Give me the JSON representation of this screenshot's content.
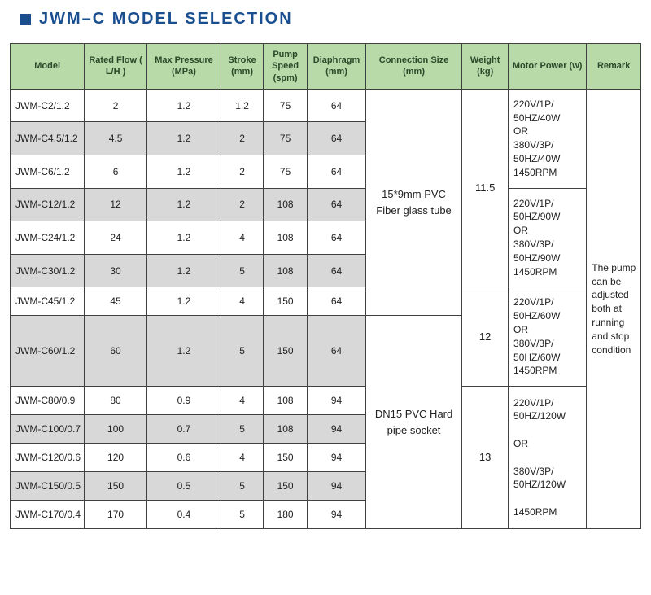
{
  "title": "JWM–C  MODEL SELECTION",
  "colors": {
    "brand": "#1a4f8f",
    "header_bg": "#b8d9a8",
    "border": "#404040",
    "shade": "#d8d8d8"
  },
  "columns": [
    "Model",
    "Rated Flow ( L/H )",
    "Max Pressure (MPa)",
    "Stroke (mm)",
    "Pump Speed (spm)",
    "Diaphragm (mm)",
    "Connection Size (mm)",
    "Weight (kg)",
    "Motor Power (w)",
    "Remark"
  ],
  "rows": [
    {
      "model": "JWM-C2/1.2",
      "flow": "2",
      "press": "1.2",
      "stroke": "1.2",
      "speed": "75",
      "diaph": "64",
      "shaded": false
    },
    {
      "model": "JWM-C4.5/1.2",
      "flow": "4.5",
      "press": "1.2",
      "stroke": "2",
      "speed": "75",
      "diaph": "64",
      "shaded": true
    },
    {
      "model": "JWM-C6/1.2",
      "flow": "6",
      "press": "1.2",
      "stroke": "2",
      "speed": "75",
      "diaph": "64",
      "shaded": false
    },
    {
      "model": "JWM-C12/1.2",
      "flow": "12",
      "press": "1.2",
      "stroke": "2",
      "speed": "108",
      "diaph": "64",
      "shaded": true
    },
    {
      "model": "JWM-C24/1.2",
      "flow": "24",
      "press": "1.2",
      "stroke": "4",
      "speed": "108",
      "diaph": "64",
      "shaded": false
    },
    {
      "model": "JWM-C30/1.2",
      "flow": "30",
      "press": "1.2",
      "stroke": "5",
      "speed": "108",
      "diaph": "64",
      "shaded": true
    },
    {
      "model": "JWM-C45/1.2",
      "flow": "45",
      "press": "1.2",
      "stroke": "4",
      "speed": "150",
      "diaph": "64",
      "shaded": false
    },
    {
      "model": "JWM-C60/1.2",
      "flow": "60",
      "press": "1.2",
      "stroke": "5",
      "speed": "150",
      "diaph": "64",
      "shaded": true
    },
    {
      "model": "JWM-C80/0.9",
      "flow": "80",
      "press": "0.9",
      "stroke": "4",
      "speed": "108",
      "diaph": "94",
      "shaded": false
    },
    {
      "model": "JWM-C100/0.7",
      "flow": "100",
      "press": "0.7",
      "stroke": "5",
      "speed": "108",
      "diaph": "94",
      "shaded": true
    },
    {
      "model": "JWM-C120/0.6",
      "flow": "120",
      "press": "0.6",
      "stroke": "4",
      "speed": "150",
      "diaph": "94",
      "shaded": false
    },
    {
      "model": "JWM-C150/0.5",
      "flow": "150",
      "press": "0.5",
      "stroke": "5",
      "speed": "150",
      "diaph": "94",
      "shaded": true
    },
    {
      "model": "JWM-C170/0.4",
      "flow": "170",
      "press": "0.4",
      "stroke": "5",
      "speed": "180",
      "diaph": "94",
      "shaded": false
    }
  ],
  "connection": {
    "group1": "15*9mm PVC Fiber glass tube",
    "group2": "DN15 PVC Hard pipe socket"
  },
  "weight": {
    "w1": "11.5",
    "w2": "12",
    "w3": "13"
  },
  "motor": {
    "m1": "220V/1P/\n50HZ/40W\nOR\n380V/3P/\n50HZ/40W\n1450RPM",
    "m2": "220V/1P/\n50HZ/90W\nOR\n380V/3P/\n50HZ/90W\n1450RPM",
    "m3": "220V/1P/\n50HZ/60W\nOR\n380V/3P/\n50HZ/60W\n1450RPM",
    "m4": "220V/1P/\n50HZ/120W\n\nOR\n\n380V/3P/\n50HZ/120W\n\n1450RPM"
  },
  "remark": "The pump can be adjusted both at running and stop condition"
}
